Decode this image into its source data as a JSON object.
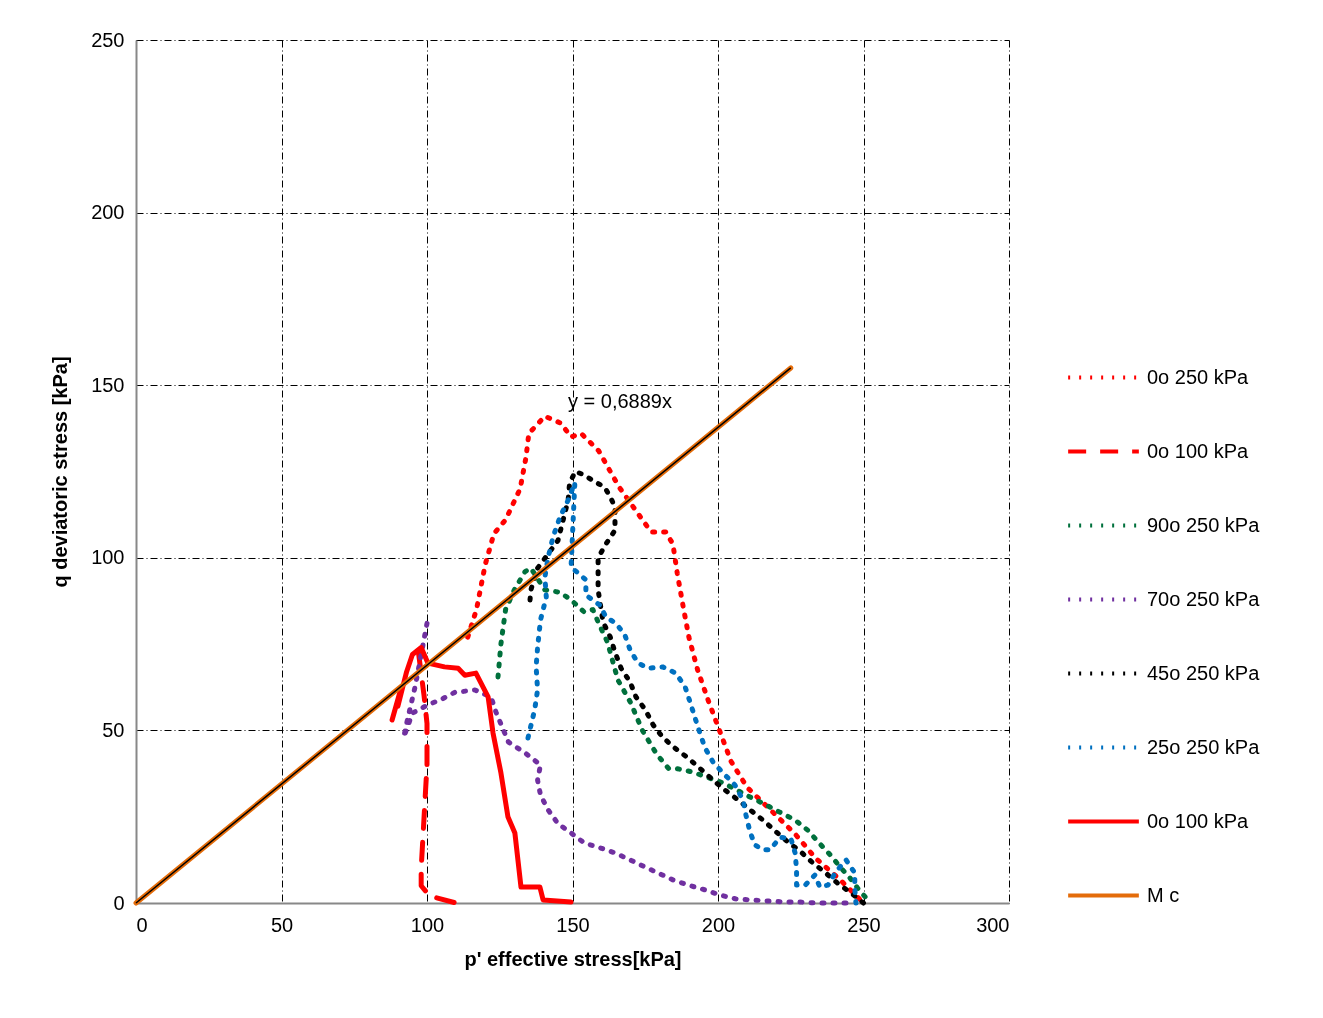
{
  "chart_data": {
    "type": "line",
    "xlabel": "p' effective stress[kPa]",
    "ylabel": "q deviatoric stress [kPa]",
    "xlim": [
      0,
      300
    ],
    "ylim": [
      0,
      250
    ],
    "xticks": [
      0,
      50,
      100,
      150,
      200,
      250,
      300
    ],
    "yticks": [
      0,
      50,
      100,
      150,
      200,
      250
    ],
    "grid": true,
    "legend": "right",
    "annotations": [
      "y = 0,6889x"
    ],
    "series": [
      {
        "name": "0o 250 kPa",
        "color": "#ff0000",
        "line_style": "dotted",
        "x": [
          114,
          117,
          120,
          123,
          127,
          132,
          134,
          135,
          140.5,
          146,
          149.5,
          153,
          159,
          166,
          171.5,
          177,
          182,
          184.5,
          186,
          188,
          190,
          193,
          196.5,
          200.5,
          204.5,
          210,
          218,
          226.5,
          233.5,
          242,
          250
        ],
        "values": [
          77,
          85,
          98,
          107,
          111,
          120,
          129,
          136,
          141,
          139,
          135,
          136,
          131,
          120.5,
          114,
          107.5,
          107.5,
          104,
          95.5,
          86,
          77,
          67.5,
          59,
          50,
          41,
          33.5,
          27,
          20,
          13,
          6.7,
          0
        ]
      },
      {
        "name": "0o 100 kPa",
        "color": "#ff0000",
        "line_style": "dashed",
        "x": [
          97,
          99,
          100,
          100,
          99,
          98,
          98,
          101,
          110
        ],
        "values": [
          73,
          60,
          52,
          40,
          25,
          10,
          5,
          2,
          0
        ]
      },
      {
        "name": "90o 250 kPa",
        "color": "#00703c",
        "line_style": "dotted",
        "x": [
          124.4,
          125.4,
          127,
          130,
          133.7,
          135.7,
          140.5,
          145.7,
          149.5,
          154,
          157,
          159,
          162,
          165.6,
          170,
          174,
          179,
          183,
          185.5,
          191,
          196,
          201.7,
          211,
          216.5,
          221,
          226.5,
          231,
          234.4,
          238.5,
          242,
          245.4,
          249,
          252.6
        ],
        "values": [
          65.5,
          75,
          85,
          90.7,
          96,
          97,
          90.7,
          90,
          87.8,
          84.3,
          85,
          81,
          75.6,
          64.6,
          58,
          50,
          43,
          39,
          39,
          38,
          36.5,
          34.8,
          30.7,
          28.4,
          26.4,
          24,
          21,
          17.7,
          14,
          10.4,
          7.2,
          3.2,
          0
        ]
      },
      {
        "name": "70o 250 kPa",
        "color": "#7030a0",
        "line_style": "dotted",
        "x": [
          100,
          98,
          96,
          93,
          92,
          95,
          100.3,
          105,
          109.5,
          116.5,
          122,
          123.7,
          128,
          133.7,
          139,
          138,
          139,
          141.6,
          145,
          149.5,
          154,
          159.4,
          164.6,
          169.8,
          175,
          179.4,
          184.5,
          189.7,
          195.5,
          200.7,
          206,
          211,
          217,
          223,
          228,
          233.7,
          239.5,
          245.4
        ],
        "values": [
          81,
          72,
          63,
          52,
          48,
          55,
          57.4,
          59,
          61,
          61.7,
          59.7,
          55.3,
          46.6,
          43.5,
          40,
          35.6,
          31.3,
          27,
          23,
          20.3,
          17.4,
          16,
          14.5,
          12.5,
          10.4,
          8.7,
          6.7,
          5.2,
          3.8,
          2.3,
          1.2,
          0.9,
          0.6,
          0.3,
          0.3,
          0,
          0,
          0
        ]
      },
      {
        "name": "45o 250 kPa",
        "color": "#000000",
        "line_style": "dotted",
        "x": [
          135.4,
          135.7,
          138,
          145,
          148.5,
          149,
          151,
          154,
          157.7,
          161,
          163,
          164.6,
          164.6,
          161.5,
          158.8,
          158.8,
          158.8,
          160.5,
          163,
          164.6,
          166.7,
          169.8,
          171.8,
          175,
          177.7,
          181,
          185,
          189.7,
          193.8,
          198.3,
          202.4,
          207,
          211,
          215.5,
          220,
          224,
          228.5,
          232.6,
          237,
          241,
          245.7,
          250
        ],
        "values": [
          87.8,
          90.7,
          97,
          105,
          116.7,
          121.7,
          125,
          124,
          122,
          120.5,
          117.6,
          114.7,
          108,
          104,
          100,
          95.6,
          90.7,
          81.4,
          77,
          72.7,
          68,
          64,
          59.7,
          56,
          51.6,
          48,
          45,
          42,
          39,
          35.6,
          32.7,
          29.8,
          27,
          24,
          20.6,
          17.7,
          14.8,
          11.6,
          8.7,
          5.8,
          2.9,
          0
        ]
      },
      {
        "name": "25o 250 kPa",
        "color": "#0070c0",
        "line_style": "dotted",
        "x": [
          134.7,
          137,
          138,
          137.5,
          138,
          139,
          141,
          140.5,
          141.6,
          143.3,
          145.7,
          148.5,
          150.8,
          149.5,
          151.9,
          154.6,
          154.6,
          159.4,
          161.5,
          165,
          168,
          169.8,
          172.5,
          176,
          181,
          185.5,
          188.7,
          190.4,
          192,
          193.8,
          195.5,
          198.3,
          201.7,
          205.8,
          208.6,
          209.6,
          211,
          212.7,
          215.5,
          217.9,
          221.3,
          225,
          226.5,
          227,
          227,
          230,
          233.3,
          235,
          237.8,
          240.5,
          244,
          247,
          247,
          247.4
        ],
        "values": [
          47.8,
          56,
          61.7,
          68.4,
          74,
          82,
          88.6,
          94.4,
          100,
          106,
          111.8,
          116.7,
          121.7,
          97.3,
          95.6,
          93.6,
          89.2,
          86.3,
          82.8,
          81,
          77.6,
          73.3,
          69.5,
          68,
          68.4,
          66.6,
          62.6,
          58.2,
          53.9,
          49.2,
          45,
          40.8,
          37.7,
          34.2,
          29.8,
          25.5,
          20.6,
          16.8,
          15.4,
          15.4,
          19,
          18.8,
          14.5,
          9.6,
          5.2,
          5.2,
          8.1,
          4.6,
          5.2,
          9,
          12.5,
          8.7,
          4.3,
          0
        ]
      },
      {
        "name": "0o 100 kPa",
        "color": "#ff0000",
        "line_style": "solid",
        "x": [
          88,
          91,
          90,
          93,
          95,
          98,
          100.3,
          106,
          110.7,
          113,
          116.8,
          121,
          122.7,
          125.4,
          127.8,
          130.2,
          132.3,
          138.8,
          139.9,
          149.5
        ],
        "values": [
          53,
          62,
          57,
          67,
          72,
          74,
          69.5,
          68.4,
          68,
          66,
          66.6,
          59.7,
          49.2,
          37.7,
          25,
          20.3,
          4.6,
          4.6,
          0.9,
          0.3
        ]
      },
      {
        "name": "M c",
        "color": "#e46c0a",
        "line_style": "solid",
        "x": [
          0,
          225
        ],
        "values": [
          0,
          155
        ]
      },
      {
        "color": "#000000",
        "line_style": "solid",
        "x": [
          0,
          225
        ],
        "values": [
          0,
          155
        ]
      }
    ]
  }
}
